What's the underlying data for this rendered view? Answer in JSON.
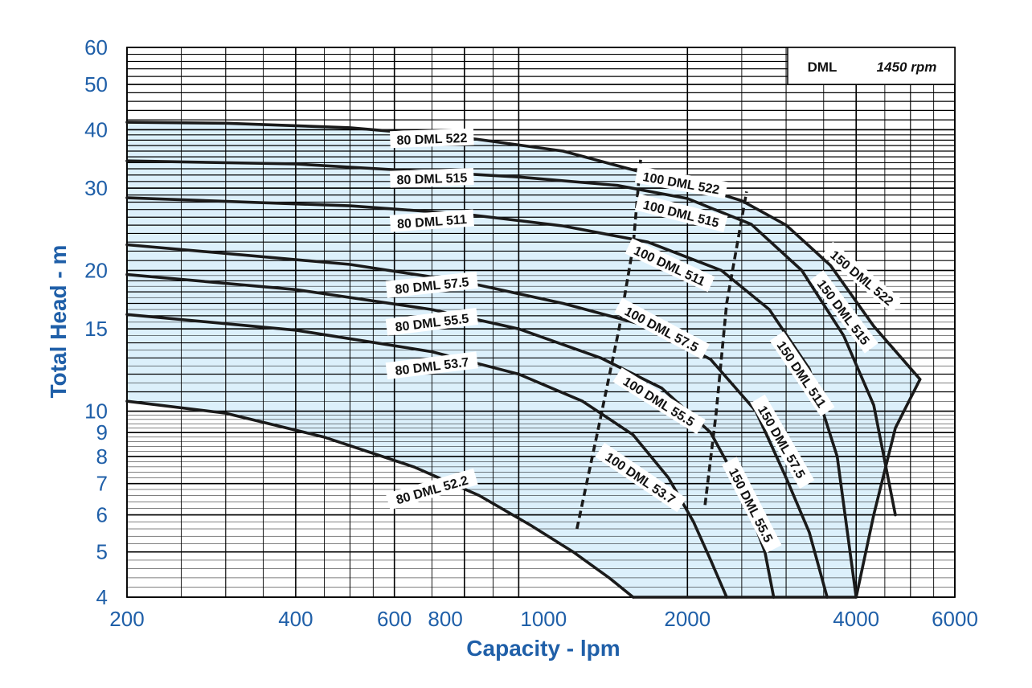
{
  "chart_data": {
    "type": "line",
    "title": "",
    "xlabel": "Capacity - lpm",
    "ylabel": "Total Head - m",
    "x_scale": "log",
    "y_scale": "log",
    "xlim": [
      200,
      6000
    ],
    "ylim": [
      4,
      60
    ],
    "grid": true,
    "legend": {
      "placement": "top-right",
      "model": "DML",
      "speed": "1450 rpm"
    },
    "x_ticks": [
      {
        "v": 200,
        "label": "200"
      },
      {
        "v": 400,
        "label": "400"
      },
      {
        "v": 600,
        "label": "600"
      },
      {
        "v": 800,
        "label": "800"
      },
      {
        "v": 1000,
        "label": "1000"
      },
      {
        "v": 2000,
        "label": "2000"
      },
      {
        "v": 4000,
        "label": "4000"
      },
      {
        "v": 6000,
        "label": "6000"
      }
    ],
    "y_ticks": [
      {
        "v": 4,
        "label": "4"
      },
      {
        "v": 5,
        "label": "5"
      },
      {
        "v": 6,
        "label": "6"
      },
      {
        "v": 7,
        "label": "7"
      },
      {
        "v": 8,
        "label": "8"
      },
      {
        "v": 9,
        "label": "9"
      },
      {
        "v": 10,
        "label": "10"
      },
      {
        "v": 15,
        "label": "15"
      },
      {
        "v": 20,
        "label": "20"
      },
      {
        "v": 30,
        "label": "30"
      },
      {
        "v": 40,
        "label": "40"
      },
      {
        "v": 50,
        "label": "50"
      },
      {
        "v": 60,
        "label": "60"
      }
    ],
    "colors": {
      "fill": "#dcf0fb",
      "curve": "#1a1a1a",
      "axis_text": "#1f5fa8",
      "grid": "#000000"
    },
    "series": [
      {
        "name": "80 DML 522",
        "points": [
          [
            200,
            41.5
          ],
          [
            300,
            41.3
          ],
          [
            500,
            40.4
          ],
          [
            800,
            38.5
          ],
          [
            1200,
            36
          ],
          [
            1650,
            32.5
          ],
          [
            2000,
            30.6
          ],
          [
            2500,
            28.2
          ],
          [
            3000,
            25
          ],
          [
            3600,
            20.5
          ],
          [
            4300,
            15.2
          ],
          [
            5200,
            11.7
          ]
        ]
      },
      {
        "name": "80 DML 515",
        "points": [
          [
            200,
            34.3
          ],
          [
            400,
            33.8
          ],
          [
            700,
            32.5
          ],
          [
            1000,
            31.7
          ],
          [
            1500,
            30.4
          ],
          [
            2000,
            28.5
          ],
          [
            2600,
            25.1
          ],
          [
            3200,
            20
          ],
          [
            3800,
            14.5
          ],
          [
            4300,
            10.3
          ],
          [
            4700,
            6
          ]
        ]
      },
      {
        "name": "80 DML 511",
        "points": [
          [
            200,
            28.6
          ],
          [
            500,
            27.5
          ],
          [
            800,
            26.4
          ],
          [
            1200,
            24.9
          ],
          [
            1700,
            23
          ],
          [
            2300,
            20
          ],
          [
            2800,
            16.5
          ],
          [
            3300,
            12.3
          ],
          [
            3700,
            8
          ],
          [
            4000,
            4
          ]
        ]
      },
      {
        "name": "80 DML 57.5",
        "points": [
          [
            200,
            22.7
          ],
          [
            500,
            20.6
          ],
          [
            800,
            18.9
          ],
          [
            1200,
            17
          ],
          [
            1700,
            15.2
          ],
          [
            2200,
            12.9
          ],
          [
            2650,
            10
          ],
          [
            3000,
            7.2
          ],
          [
            3300,
            5.5
          ],
          [
            3550,
            4
          ]
        ]
      },
      {
        "name": "80 DML 55.5",
        "points": [
          [
            200,
            19.6
          ],
          [
            400,
            18.2
          ],
          [
            700,
            16.5
          ],
          [
            1000,
            15
          ],
          [
            1400,
            13
          ],
          [
            1800,
            11.2
          ],
          [
            2200,
            9
          ],
          [
            2500,
            6.8
          ],
          [
            2750,
            5
          ],
          [
            2850,
            4
          ]
        ]
      },
      {
        "name": "80 DML 53.7",
        "points": [
          [
            200,
            16.1
          ],
          [
            400,
            14.9
          ],
          [
            700,
            13.4
          ],
          [
            1000,
            12
          ],
          [
            1300,
            10.5
          ],
          [
            1600,
            8.9
          ],
          [
            1850,
            7.2
          ],
          [
            2050,
            5.8
          ],
          [
            2200,
            4.8
          ],
          [
            2350,
            4
          ]
        ]
      },
      {
        "name": "80 DML 52.2",
        "points": [
          [
            200,
            10.5
          ],
          [
            300,
            9.9
          ],
          [
            450,
            8.8
          ],
          [
            650,
            7.6
          ],
          [
            850,
            6.6
          ],
          [
            1050,
            5.7
          ],
          [
            1250,
            5
          ],
          [
            1450,
            4.4
          ],
          [
            1600,
            4
          ]
        ]
      }
    ],
    "dividers": [
      {
        "points": [
          [
            1270,
            5.6
          ],
          [
            1390,
            9.3
          ],
          [
            1510,
            15
          ],
          [
            1600,
            22.5
          ],
          [
            1650,
            34.5
          ]
        ]
      },
      {
        "points": [
          [
            2150,
            6.3
          ],
          [
            2250,
            9.9
          ],
          [
            2350,
            17
          ],
          [
            2550,
            29.5
          ]
        ]
      }
    ],
    "envelope": {
      "points": [
        [
          200,
          41.5
        ],
        [
          300,
          41.3
        ],
        [
          500,
          40.4
        ],
        [
          800,
          38.5
        ],
        [
          1200,
          36
        ],
        [
          1650,
          32.5
        ],
        [
          2000,
          30.6
        ],
        [
          2500,
          28.2
        ],
        [
          3000,
          25
        ],
        [
          3600,
          20.5
        ],
        [
          4300,
          15.2
        ],
        [
          5200,
          11.7
        ],
        [
          4700,
          9.2
        ],
        [
          4000,
          4
        ],
        [
          1600,
          4
        ],
        [
          1450,
          4.4
        ],
        [
          1250,
          5
        ],
        [
          1050,
          5.7
        ],
        [
          850,
          6.6
        ],
        [
          650,
          7.6
        ],
        [
          450,
          8.8
        ],
        [
          300,
          9.9
        ],
        [
          200,
          10.5
        ]
      ]
    },
    "envelope_right": {
      "points": [
        [
          5200,
          11.7
        ],
        [
          4700,
          9.2
        ],
        [
          4300,
          6
        ],
        [
          4000,
          4
        ]
      ]
    },
    "labels": [
      {
        "text": "80 DML 522",
        "x": 700,
        "y": 38.3,
        "angle": -2
      },
      {
        "text": "80 DML 515",
        "x": 700,
        "y": 31.5,
        "angle": -2
      },
      {
        "text": "80 DML 511",
        "x": 700,
        "y": 25.5,
        "angle": -4
      },
      {
        "text": "80 DML 57.5",
        "x": 700,
        "y": 18.6,
        "angle": -6
      },
      {
        "text": "80 DML 55.5",
        "x": 700,
        "y": 15.5,
        "angle": -7
      },
      {
        "text": "80 DML 53.7",
        "x": 700,
        "y": 12.5,
        "angle": -7
      },
      {
        "text": "80 DML 52.2",
        "x": 700,
        "y": 6.8,
        "angle": -16
      },
      {
        "text": "100 DML 522",
        "x": 1950,
        "y": 30.8,
        "angle": 10
      },
      {
        "text": "100 DML 515",
        "x": 1950,
        "y": 26.5,
        "angle": 14
      },
      {
        "text": "100 DML 511",
        "x": 1860,
        "y": 20.5,
        "angle": 25
      },
      {
        "text": "100 DML 57.5",
        "x": 1800,
        "y": 15,
        "angle": 28
      },
      {
        "text": "100 DML 55.5",
        "x": 1780,
        "y": 10.5,
        "angle": 32
      },
      {
        "text": "100 DML 53.7",
        "x": 1650,
        "y": 7.2,
        "angle": 34
      },
      {
        "text": "150 DML 522",
        "x": 4100,
        "y": 19.3,
        "angle": 40
      },
      {
        "text": "150 DML 515",
        "x": 3800,
        "y": 16.3,
        "angle": 53
      },
      {
        "text": "150 DML 511",
        "x": 3200,
        "y": 12,
        "angle": 56
      },
      {
        "text": "150 DML 57.5",
        "x": 2950,
        "y": 8.6,
        "angle": 60
      },
      {
        "text": "150 DML 55.5",
        "x": 2600,
        "y": 6.3,
        "angle": 63
      }
    ]
  }
}
